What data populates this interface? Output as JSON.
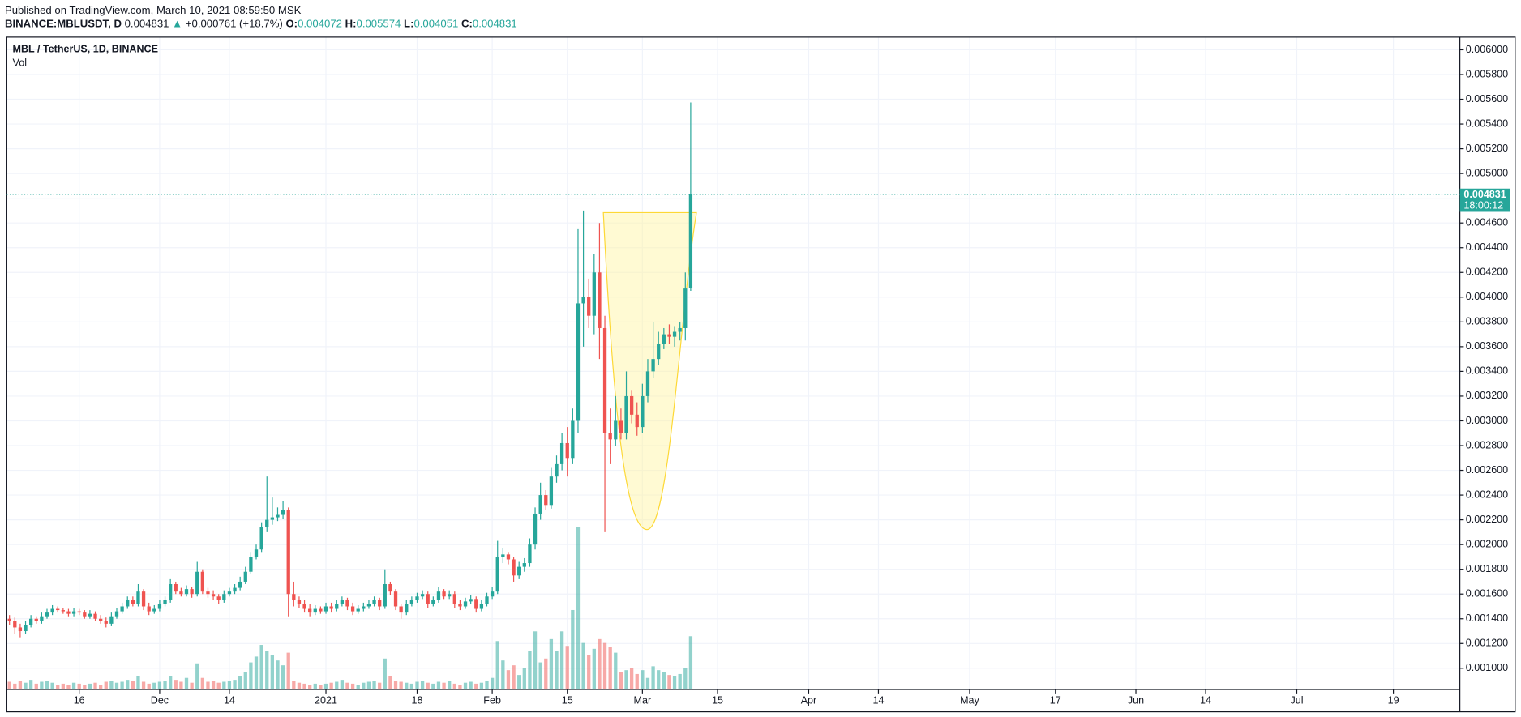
{
  "header": {
    "published": "Published on TradingView.com, March 10, 2021 08:59:50 MSK",
    "symbol": "BINANCE:MBLUSDT, D",
    "last": "0.004831",
    "arrow": "▲",
    "change": "+0.000761 (+18.7%)",
    "open_label": "O:",
    "open": "0.004072",
    "high_label": "H:",
    "high": "0.005574",
    "low_label": "L:",
    "low": "0.004051",
    "close_label": "C:",
    "close": "0.004831"
  },
  "chart_data": {
    "type": "candlestick",
    "title": "MBL / TetherUS, 1D, BINANCE",
    "volume_label": "Vol",
    "countdown": "18:00:12",
    "up_color": "#26a69a",
    "down_color": "#ef5350",
    "grid": true,
    "open": [
      0.0014,
      0.00138,
      0.00133,
      0.0013,
      0.00135,
      0.0014,
      0.00138,
      0.00142,
      0.00145,
      0.00148,
      0.00147,
      0.00146,
      0.00144,
      0.00146,
      0.00145,
      0.00142,
      0.00144,
      0.0014,
      0.00138,
      0.00136,
      0.00142,
      0.00146,
      0.0015,
      0.00155,
      0.00152,
      0.00162,
      0.0015,
      0.00146,
      0.00148,
      0.00152,
      0.00155,
      0.00168,
      0.00162,
      0.0016,
      0.00164,
      0.0016,
      0.00178,
      0.00162,
      0.0016,
      0.00158,
      0.00155,
      0.0016,
      0.00162,
      0.00165,
      0.0017,
      0.00178,
      0.0019,
      0.00196,
      0.00214,
      0.0022,
      0.00222,
      0.00224,
      0.00228,
      0.0016,
      0.00155,
      0.00152,
      0.00148,
      0.00145,
      0.00148,
      0.00146,
      0.0015,
      0.00148,
      0.00152,
      0.00155,
      0.0015,
      0.00146,
      0.00148,
      0.0015,
      0.00152,
      0.00155,
      0.0015,
      0.00168,
      0.00162,
      0.0015,
      0.00145,
      0.00152,
      0.00155,
      0.00158,
      0.0016,
      0.00152,
      0.00155,
      0.00162,
      0.00158,
      0.0016,
      0.00152,
      0.0015,
      0.00154,
      0.00156,
      0.00148,
      0.00152,
      0.00158,
      0.00162,
      0.0019,
      0.00192,
      0.00188,
      0.00175,
      0.00182,
      0.00185,
      0.002,
      0.00225,
      0.0024,
      0.00232,
      0.00255,
      0.00265,
      0.00282,
      0.0027,
      0.003,
      0.00395,
      0.004,
      0.00385,
      0.0042,
      0.00375,
      0.0029,
      0.00285,
      0.003,
      0.0029,
      0.0032,
      0.00305,
      0.00295,
      0.0032,
      0.0034,
      0.0035,
      0.00362,
      0.0037,
      0.00368,
      0.00372,
      0.00375,
      0.004072
    ],
    "high": [
      0.00143,
      0.00141,
      0.00136,
      0.00138,
      0.00143,
      0.00142,
      0.00145,
      0.00148,
      0.00151,
      0.0015,
      0.00149,
      0.00148,
      0.00149,
      0.00148,
      0.00147,
      0.00147,
      0.00146,
      0.00143,
      0.00141,
      0.00145,
      0.00149,
      0.00153,
      0.00158,
      0.00158,
      0.00168,
      0.00164,
      0.00153,
      0.00151,
      0.00155,
      0.00158,
      0.00172,
      0.0017,
      0.00165,
      0.00167,
      0.00166,
      0.00186,
      0.0018,
      0.00165,
      0.00163,
      0.0016,
      0.00163,
      0.00165,
      0.00168,
      0.00174,
      0.00182,
      0.00194,
      0.002,
      0.00218,
      0.00255,
      0.00238,
      0.0023,
      0.00235,
      0.0023,
      0.0017,
      0.00158,
      0.00155,
      0.00152,
      0.00151,
      0.0015,
      0.00153,
      0.00153,
      0.00155,
      0.00158,
      0.00157,
      0.00153,
      0.00151,
      0.00153,
      0.00155,
      0.00158,
      0.00157,
      0.0018,
      0.0017,
      0.00164,
      0.00152,
      0.00155,
      0.00158,
      0.00161,
      0.00163,
      0.00162,
      0.00158,
      0.00166,
      0.00164,
      0.00163,
      0.00162,
      0.00155,
      0.00157,
      0.00159,
      0.00158,
      0.00155,
      0.00161,
      0.00166,
      0.00203,
      0.00197,
      0.00194,
      0.0019,
      0.00186,
      0.00189,
      0.00205,
      0.0023,
      0.0025,
      0.00244,
      0.00262,
      0.00272,
      0.0029,
      0.00295,
      0.0031,
      0.00455,
      0.0047,
      0.00415,
      0.00435,
      0.0046,
      0.00385,
      0.0031,
      0.0032,
      0.0031,
      0.0034,
      0.00325,
      0.00315,
      0.0033,
      0.0035,
      0.0038,
      0.00372,
      0.00375,
      0.00378,
      0.00376,
      0.0038,
      0.0042,
      0.005574
    ],
    "low": [
      0.00135,
      0.00128,
      0.00125,
      0.00128,
      0.00133,
      0.00136,
      0.00136,
      0.0014,
      0.00143,
      0.00145,
      0.00144,
      0.00142,
      0.00142,
      0.00143,
      0.0014,
      0.0014,
      0.00138,
      0.00136,
      0.00133,
      0.00134,
      0.0014,
      0.00144,
      0.00148,
      0.0015,
      0.0015,
      0.00147,
      0.00143,
      0.00144,
      0.00146,
      0.0015,
      0.00153,
      0.0016,
      0.00158,
      0.00158,
      0.00157,
      0.00158,
      0.0016,
      0.00157,
      0.00155,
      0.00152,
      0.00153,
      0.00158,
      0.0016,
      0.00163,
      0.00168,
      0.00176,
      0.00188,
      0.00194,
      0.0021,
      0.00216,
      0.00219,
      0.00221,
      0.00142,
      0.0015,
      0.00149,
      0.00145,
      0.00142,
      0.00143,
      0.00144,
      0.00144,
      0.00145,
      0.00146,
      0.0015,
      0.00147,
      0.00143,
      0.00144,
      0.00146,
      0.00148,
      0.0015,
      0.00147,
      0.00148,
      0.00159,
      0.00147,
      0.0014,
      0.00143,
      0.0015,
      0.00153,
      0.00156,
      0.00149,
      0.0015,
      0.00153,
      0.00156,
      0.00156,
      0.00149,
      0.00147,
      0.00148,
      0.00152,
      0.00145,
      0.00146,
      0.0015,
      0.00156,
      0.0016,
      0.00185,
      0.00184,
      0.0017,
      0.00172,
      0.00178,
      0.00182,
      0.00196,
      0.0022,
      0.00228,
      0.00229,
      0.0025,
      0.0026,
      0.00255,
      0.00265,
      0.0029,
      0.0036,
      0.00375,
      0.0037,
      0.0035,
      0.0021,
      0.00265,
      0.0028,
      0.00285,
      0.00285,
      0.00298,
      0.00288,
      0.0029,
      0.00315,
      0.00335,
      0.00345,
      0.00358,
      0.00362,
      0.0036,
      0.00365,
      0.00365,
      0.004051
    ],
    "close": [
      0.00138,
      0.00133,
      0.0013,
      0.00135,
      0.0014,
      0.00138,
      0.00142,
      0.00145,
      0.00148,
      0.00147,
      0.00146,
      0.00144,
      0.00146,
      0.00145,
      0.00142,
      0.00144,
      0.0014,
      0.00138,
      0.00136,
      0.00142,
      0.00146,
      0.0015,
      0.00155,
      0.00152,
      0.00162,
      0.0015,
      0.00146,
      0.00148,
      0.00152,
      0.00155,
      0.00168,
      0.00162,
      0.0016,
      0.00164,
      0.0016,
      0.00178,
      0.00162,
      0.0016,
      0.00158,
      0.00155,
      0.0016,
      0.00162,
      0.00165,
      0.0017,
      0.00178,
      0.0019,
      0.00196,
      0.00214,
      0.0022,
      0.00222,
      0.00224,
      0.00228,
      0.0016,
      0.00155,
      0.00152,
      0.00148,
      0.00145,
      0.00148,
      0.00146,
      0.0015,
      0.00148,
      0.00152,
      0.00155,
      0.0015,
      0.00146,
      0.00148,
      0.0015,
      0.00152,
      0.00155,
      0.0015,
      0.00168,
      0.00162,
      0.0015,
      0.00145,
      0.00152,
      0.00155,
      0.00158,
      0.0016,
      0.00152,
      0.00155,
      0.00162,
      0.00158,
      0.0016,
      0.00152,
      0.0015,
      0.00154,
      0.00156,
      0.00148,
      0.00152,
      0.00158,
      0.00162,
      0.0019,
      0.00192,
      0.00188,
      0.00175,
      0.00182,
      0.00185,
      0.002,
      0.00225,
      0.0024,
      0.00232,
      0.00255,
      0.00265,
      0.00282,
      0.0027,
      0.003,
      0.00395,
      0.004,
      0.00385,
      0.0042,
      0.00375,
      0.0029,
      0.00285,
      0.003,
      0.0029,
      0.0032,
      0.00305,
      0.00295,
      0.0032,
      0.0034,
      0.0035,
      0.00362,
      0.0037,
      0.00368,
      0.00372,
      0.00375,
      0.00407,
      0.004831
    ],
    "volume": [
      8,
      6,
      9,
      7,
      10,
      6,
      8,
      9,
      7,
      5,
      6,
      5,
      7,
      6,
      5,
      6,
      7,
      5,
      8,
      9,
      7,
      8,
      10,
      9,
      14,
      8,
      6,
      7,
      8,
      9,
      14,
      10,
      8,
      12,
      7,
      27,
      12,
      8,
      9,
      7,
      8,
      9,
      10,
      14,
      18,
      28,
      34,
      46,
      40,
      36,
      30,
      25,
      38,
      9,
      7,
      6,
      5,
      6,
      5,
      6,
      7,
      8,
      10,
      7,
      6,
      5,
      7,
      8,
      9,
      7,
      32,
      14,
      9,
      8,
      7,
      6,
      8,
      9,
      7,
      6,
      8,
      7,
      9,
      6,
      5,
      7,
      8,
      6,
      7,
      9,
      12,
      50,
      30,
      20,
      25,
      15,
      22,
      40,
      60,
      28,
      32,
      52,
      40,
      60,
      45,
      82,
      168,
      48,
      36,
      42,
      52,
      48,
      44,
      38,
      18,
      20,
      22,
      16,
      20,
      12,
      24,
      20,
      18,
      15,
      14,
      16,
      22,
      55
    ],
    "xlim": [
      -0.5,
      270.4
    ],
    "xticks": [
      {
        "value": 13,
        "label": "16"
      },
      {
        "value": 28,
        "label": "Dec"
      },
      {
        "value": 41,
        "label": "14"
      },
      {
        "value": 59,
        "label": "2021"
      },
      {
        "value": 76,
        "label": "18"
      },
      {
        "value": 90,
        "label": "Feb"
      },
      {
        "value": 104,
        "label": "15"
      },
      {
        "value": 118,
        "label": "Mar"
      },
      {
        "value": 132,
        "label": "15"
      },
      {
        "value": 149,
        "label": "Apr"
      },
      {
        "value": 162,
        "label": "14"
      },
      {
        "value": 179,
        "label": "May"
      },
      {
        "value": 195,
        "label": "17"
      },
      {
        "value": 210,
        "label": "Jun"
      },
      {
        "value": 223,
        "label": "14"
      },
      {
        "value": 240,
        "label": "Jul"
      },
      {
        "value": 258,
        "label": "19"
      }
    ],
    "ylim": [
      0.000828,
      0.006102
    ],
    "yticks": [
      {
        "value": 0.001,
        "label": "0.001000"
      },
      {
        "value": 0.0012,
        "label": "0.001200"
      },
      {
        "value": 0.0014,
        "label": "0.001400"
      },
      {
        "value": 0.0016,
        "label": "0.001600"
      },
      {
        "value": 0.0018,
        "label": "0.001800"
      },
      {
        "value": 0.002,
        "label": "0.002000"
      },
      {
        "value": 0.0022,
        "label": "0.002200"
      },
      {
        "value": 0.0024,
        "label": "0.002400"
      },
      {
        "value": 0.0026,
        "label": "0.002600"
      },
      {
        "value": 0.0028,
        "label": "0.002800"
      },
      {
        "value": 0.003,
        "label": "0.003000"
      },
      {
        "value": 0.0032,
        "label": "0.003200"
      },
      {
        "value": 0.0034,
        "label": "0.003400"
      },
      {
        "value": 0.0036,
        "label": "0.003600"
      },
      {
        "value": 0.0038,
        "label": "0.003800"
      },
      {
        "value": 0.004,
        "label": "0.004000"
      },
      {
        "value": 0.0042,
        "label": "0.004200"
      },
      {
        "value": 0.0044,
        "label": "0.004400"
      },
      {
        "value": 0.0046,
        "label": "0.004600"
      },
      {
        "value": 0.0048,
        "label": "0.004800"
      },
      {
        "value": 0.005,
        "label": "0.005000"
      },
      {
        "value": 0.0052,
        "label": "0.005200"
      },
      {
        "value": 0.0054,
        "label": "0.005400"
      },
      {
        "value": 0.0056,
        "label": "0.005600"
      },
      {
        "value": 0.0058,
        "label": "0.005800"
      },
      {
        "value": 0.006,
        "label": "0.006000"
      }
    ]
  }
}
